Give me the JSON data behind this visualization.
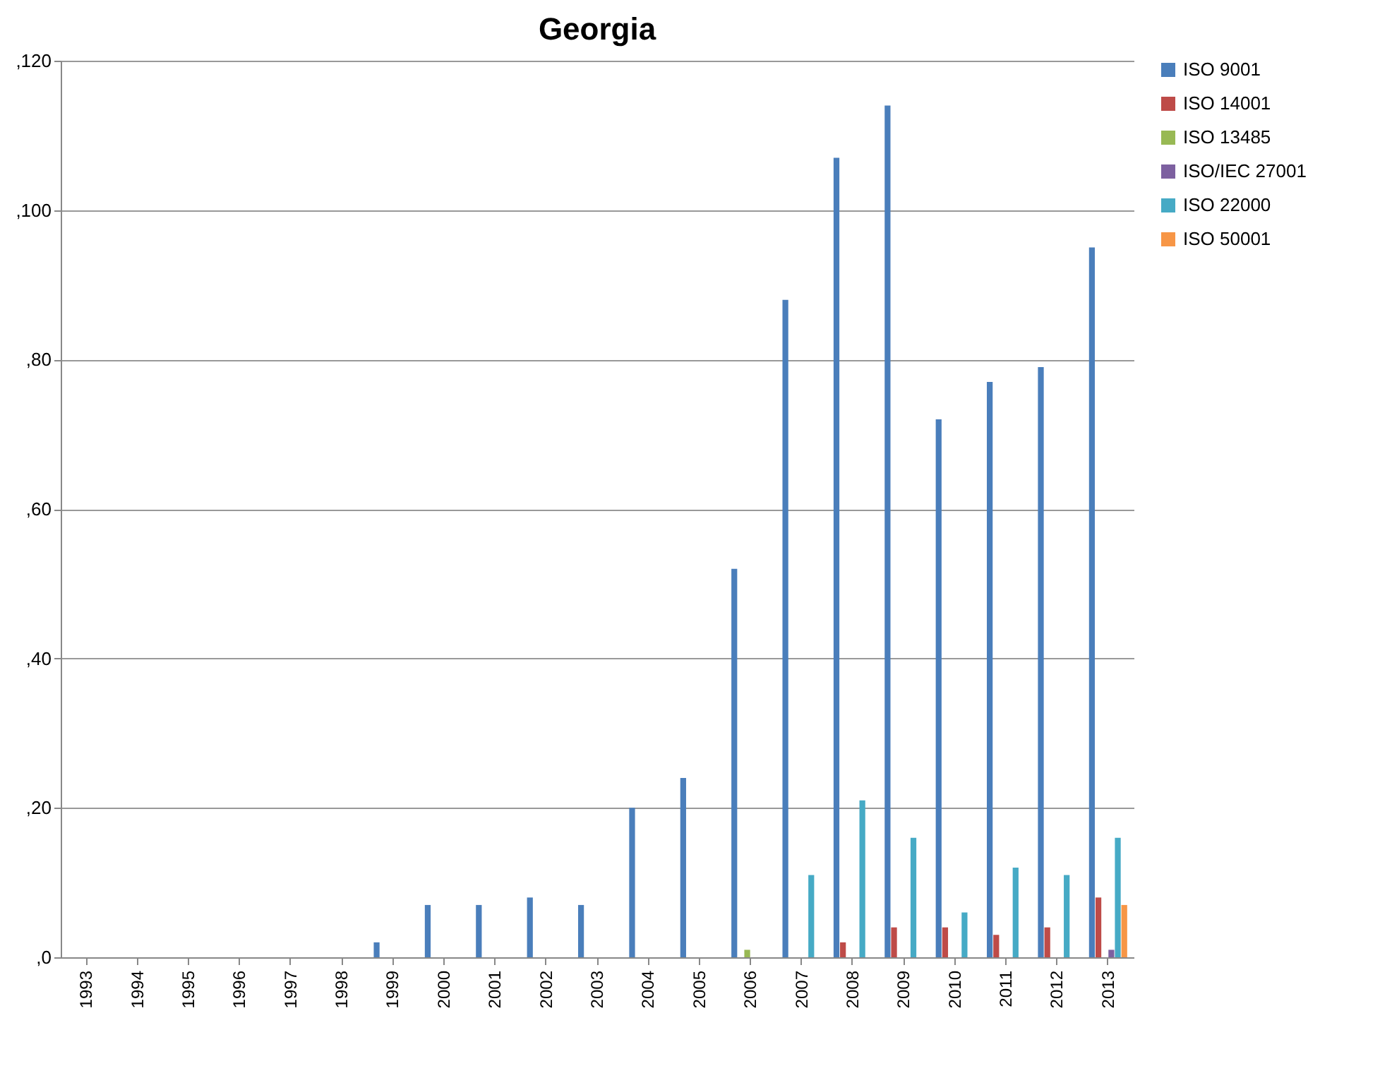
{
  "chart_data": {
    "type": "bar",
    "title": "Georgia",
    "categories": [
      "1993",
      "1994",
      "1995",
      "1996",
      "1997",
      "1998",
      "1999",
      "2000",
      "2001",
      "2002",
      "2003",
      "2004",
      "2005",
      "2006",
      "2007",
      "2008",
      "2009",
      "2010",
      "2011",
      "2012",
      "2013"
    ],
    "series": [
      {
        "name": "ISO 9001",
        "color": "#4a7ebb",
        "values": [
          null,
          null,
          null,
          null,
          null,
          null,
          2,
          7,
          7,
          8,
          7,
          20,
          24,
          52,
          88,
          107,
          114,
          72,
          77,
          79,
          95
        ]
      },
      {
        "name": "ISO 14001",
        "color": "#be4b48",
        "values": [
          null,
          null,
          null,
          null,
          null,
          null,
          null,
          null,
          null,
          null,
          null,
          null,
          null,
          null,
          null,
          2,
          4,
          4,
          3,
          4,
          8
        ]
      },
      {
        "name": "ISO 13485",
        "color": "#98b954",
        "values": [
          null,
          null,
          null,
          null,
          null,
          null,
          null,
          null,
          null,
          null,
          null,
          null,
          null,
          1,
          null,
          null,
          null,
          null,
          null,
          null,
          null
        ]
      },
      {
        "name": "ISO/IEC 27001",
        "color": "#7d60a0",
        "values": [
          null,
          null,
          null,
          null,
          null,
          null,
          null,
          null,
          null,
          null,
          null,
          null,
          null,
          null,
          null,
          null,
          null,
          null,
          null,
          null,
          1
        ]
      },
      {
        "name": "ISO 22000",
        "color": "#46aac5",
        "values": [
          null,
          null,
          null,
          null,
          null,
          null,
          null,
          null,
          null,
          null,
          null,
          null,
          null,
          null,
          11,
          21,
          16,
          6,
          12,
          11,
          16
        ]
      },
      {
        "name": "ISO 50001",
        "color": "#f79646",
        "values": [
          null,
          null,
          null,
          null,
          null,
          null,
          null,
          null,
          null,
          null,
          null,
          null,
          null,
          null,
          null,
          null,
          null,
          null,
          null,
          null,
          7
        ]
      }
    ],
    "ylim": [
      0,
      120
    ],
    "yticks": [
      {
        "value": 0,
        "label": ",0"
      },
      {
        "value": 20,
        "label": ",20"
      },
      {
        "value": 40,
        "label": ",40"
      },
      {
        "value": 60,
        "label": ",60"
      },
      {
        "value": 80,
        "label": ",80"
      },
      {
        "value": 100,
        "label": ",100"
      },
      {
        "value": 120,
        "label": ",120"
      }
    ],
    "grid": "y",
    "legend": "right"
  }
}
